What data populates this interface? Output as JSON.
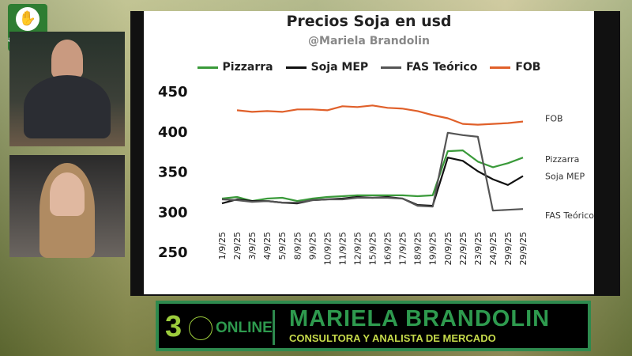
{
  "logo": {
    "text": "agrositio"
  },
  "banner": {
    "number": "3",
    "online": "ONLINE",
    "name": "MARIELA BRANDOLIN",
    "role": "CONSULTORA Y ANALISTA DE MERCADO"
  },
  "chart_data": {
    "type": "line",
    "title": "Precios Soja en usd",
    "subtitle": "@Mariela Brandolin",
    "ylim": [
      250,
      450
    ],
    "yticks": [
      250,
      300,
      350,
      400,
      450
    ],
    "categories": [
      "1/9/25",
      "2/9/25",
      "3/9/25",
      "4/9/25",
      "5/9/25",
      "8/9/25",
      "9/9/25",
      "10/9/25",
      "11/9/25",
      "12/9/25",
      "15/9/25",
      "16/9/25",
      "17/9/25",
      "18/9/25",
      "19/9/25",
      "20/9/25",
      "22/9/25",
      "23/9/25",
      "24/9/25",
      "29/9/25",
      "29/9/25"
    ],
    "legend_position": "top",
    "series": [
      {
        "name": "Pizzarra",
        "label": "Pizzarra",
        "color": "#3a9a3a",
        "values": [
          316,
          318,
          313,
          316,
          317,
          313,
          316,
          318,
          319,
          320,
          320,
          320,
          320,
          319,
          320,
          375,
          376,
          362,
          355,
          360,
          367
        ]
      },
      {
        "name": "Soja MEP",
        "label": "Soja MEP",
        "color": "#111111",
        "values": [
          310,
          315,
          313,
          313,
          311,
          310,
          314,
          315,
          316,
          318,
          317,
          318,
          316,
          308,
          307,
          367,
          363,
          350,
          340,
          333,
          344
        ]
      },
      {
        "name": "FAS Teórico",
        "label": "FAS Teórico",
        "color": "#555555",
        "values": [
          315,
          314,
          312,
          313,
          311,
          311,
          314,
          315,
          315,
          317,
          317,
          317,
          316,
          307,
          306,
          398,
          395,
          393,
          301,
          302,
          303
        ]
      },
      {
        "name": "FOB",
        "label": "FOB",
        "color": "#e0602a",
        "values": [
          null,
          426,
          424,
          425,
          424,
          427,
          427,
          426,
          431,
          430,
          432,
          429,
          428,
          425,
          420,
          416,
          409,
          408,
          409,
          410,
          412
        ]
      }
    ]
  }
}
